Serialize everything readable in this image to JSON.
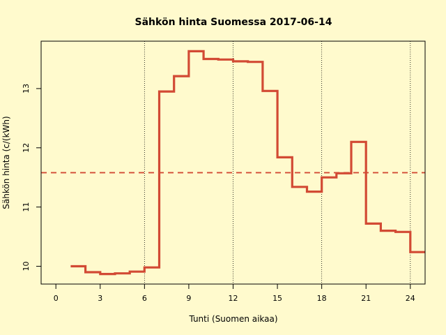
{
  "chart_data": {
    "type": "line",
    "title": "Sähkön hinta Suomessa 2017-06-14",
    "xlabel": "Tunti (Suomen aikaa)",
    "ylabel": "Sähkön hinta (c/(kWh)",
    "xlim": [
      -1,
      25
    ],
    "ylim": [
      9.7,
      13.8
    ],
    "x_ticks": [
      0,
      3,
      6,
      9,
      12,
      15,
      18,
      21,
      24
    ],
    "y_ticks": [
      10,
      11,
      12,
      13
    ],
    "vertical_gridlines": [
      6,
      12,
      18,
      24
    ],
    "step": "right-continuous",
    "series": [
      {
        "x": [
          1,
          2,
          3,
          4,
          5,
          6,
          7,
          8,
          9,
          10,
          11,
          12,
          13,
          14,
          15,
          16,
          17,
          18,
          19,
          20,
          21,
          22,
          23,
          24
        ],
        "values": [
          10.0,
          9.9,
          9.87,
          9.88,
          9.91,
          9.98,
          12.95,
          13.21,
          13.63,
          13.5,
          13.49,
          13.46,
          13.45,
          12.96,
          11.84,
          11.34,
          11.26,
          11.5,
          11.57,
          12.1,
          10.72,
          10.6,
          10.58,
          10.24
        ],
        "color": "#d24a34"
      }
    ],
    "reference_line": {
      "y": 11.58,
      "style": "dashed",
      "color": "#d24a34"
    },
    "background": "#fffacd"
  }
}
